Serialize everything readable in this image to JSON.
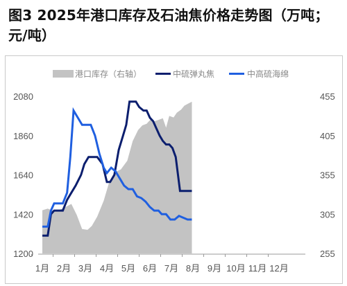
{
  "title": "图3 2025年港口库存及石油焦价格走势图（万吨；元/吨）",
  "chart_data": {
    "type": "line",
    "x_tick_labels": [
      "1月",
      "2月",
      "3月",
      "4月",
      "5月",
      "6月",
      "7月",
      "8月",
      "9月",
      "10月",
      "11月",
      "12月"
    ],
    "y_left": {
      "ylim": [
        1200,
        2080
      ],
      "ticks": [
        "1200",
        "1420",
        "1640",
        "1860",
        "2080"
      ]
    },
    "y_right": {
      "ylim": [
        255,
        455
      ],
      "ticks": [
        "255",
        "305",
        "355",
        "405",
        "455"
      ]
    },
    "legend_position": "top",
    "grid": false,
    "series": [
      {
        "name": "港口库存（右轴）",
        "kind": "area",
        "axis": "right",
        "color": "#c3c3c3",
        "x": [
          1.0,
          1.25,
          1.6,
          2.0,
          2.35,
          2.6,
          2.85,
          3.1,
          3.3,
          3.55,
          3.85,
          4.1,
          4.35,
          4.65,
          4.95,
          5.2,
          5.45,
          5.65,
          5.85,
          6.05,
          6.2,
          6.4,
          6.6,
          6.75,
          6.9,
          7.1,
          7.25,
          7.45,
          7.6,
          7.8,
          7.95
        ],
        "values": [
          310,
          312,
          308,
          313,
          318,
          304,
          286,
          285,
          290,
          302,
          322,
          345,
          358,
          362,
          373,
          398,
          412,
          418,
          420,
          426,
          423,
          425,
          427,
          415,
          430,
          428,
          434,
          438,
          443,
          446,
          448
        ]
      },
      {
        "name": "中硫弹丸焦",
        "kind": "line",
        "axis": "left",
        "color": "#0b1e6e",
        "x": [
          1.0,
          1.25,
          1.4,
          1.55,
          1.75,
          1.95,
          2.15,
          2.35,
          2.55,
          2.8,
          2.95,
          3.15,
          3.35,
          3.55,
          3.8,
          4.0,
          4.15,
          4.35,
          4.55,
          4.75,
          4.9,
          5.05,
          5.2,
          5.35,
          5.5,
          5.7,
          5.85,
          6.0,
          6.15,
          6.3,
          6.45,
          6.6,
          6.75,
          6.9,
          7.05,
          7.2,
          7.4,
          7.6,
          7.8,
          7.95
        ],
        "values": [
          1300,
          1300,
          1420,
          1440,
          1440,
          1440,
          1500,
          1540,
          1580,
          1640,
          1700,
          1740,
          1740,
          1740,
          1700,
          1600,
          1600,
          1640,
          1780,
          1860,
          1920,
          2050,
          2050,
          2050,
          2020,
          2000,
          2000,
          1960,
          1940,
          1900,
          1860,
          1830,
          1810,
          1810,
          1790,
          1740,
          1550,
          1550,
          1550,
          1550
        ]
      },
      {
        "name": "中高硫海绵",
        "kind": "line",
        "axis": "left",
        "color": "#1f5fe0",
        "x": [
          1.0,
          1.25,
          1.4,
          1.55,
          1.75,
          1.95,
          2.15,
          2.3,
          2.45,
          2.65,
          2.85,
          3.05,
          3.25,
          3.45,
          3.65,
          3.85,
          4.0,
          4.2,
          4.4,
          4.6,
          4.8,
          5.0,
          5.2,
          5.4,
          5.6,
          5.8,
          6.0,
          6.2,
          6.4,
          6.55,
          6.75,
          6.95,
          7.15,
          7.35,
          7.55,
          7.75,
          7.95
        ],
        "values": [
          1350,
          1350,
          1440,
          1480,
          1480,
          1480,
          1540,
          1740,
          2000,
          1960,
          1920,
          1920,
          1920,
          1860,
          1760,
          1680,
          1650,
          1680,
          1660,
          1620,
          1580,
          1560,
          1560,
          1520,
          1510,
          1490,
          1460,
          1440,
          1440,
          1420,
          1420,
          1390,
          1390,
          1410,
          1400,
          1390,
          1390
        ]
      }
    ]
  }
}
